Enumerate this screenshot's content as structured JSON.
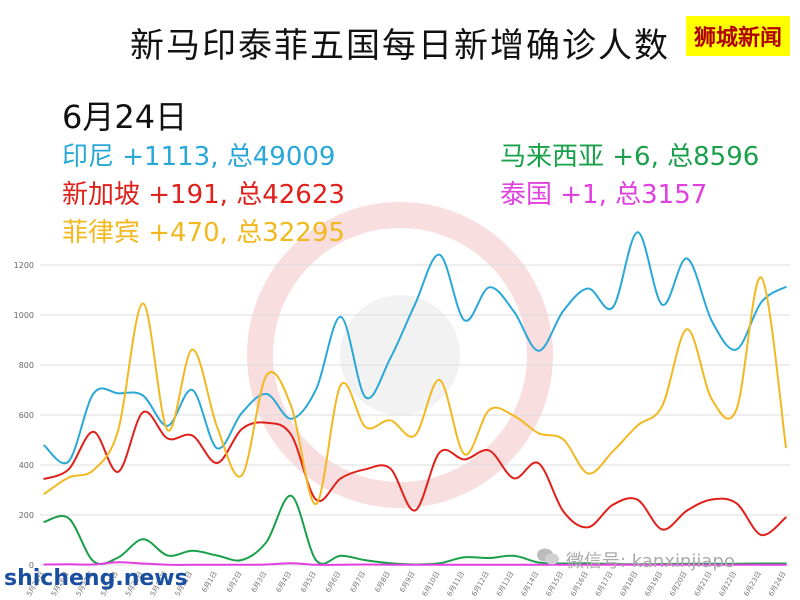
{
  "header": {
    "title": "新马印泰菲五国每日新增确诊人数",
    "badge": "狮城新闻",
    "date": "6月24日"
  },
  "stats": [
    {
      "key": "indonesia",
      "text": "印尼 +1113, 总49009",
      "color": "#29a8d8"
    },
    {
      "key": "malaysia",
      "text": "马来西亚 +6, 总8596",
      "color": "#1aa04a"
    },
    {
      "key": "singapore",
      "text": "新加坡 +191, 总42623",
      "color": "#e0201a"
    },
    {
      "key": "thailand",
      "text": "泰国 +1, 总3157",
      "color": "#e23fe0"
    },
    {
      "key": "philippines",
      "text": "菲律宾 +470, 总32295",
      "color": "#f2b820"
    }
  ],
  "watermarks": {
    "wechat": "微信号: kanxinjiapo",
    "site": "shicheng.news",
    "wechat_icon": "chat-bubble-icon"
  },
  "chart_data": {
    "type": "line",
    "title": "新马印泰菲五国每日新增确诊人数",
    "xlabel": "",
    "ylabel": "",
    "ylim": [
      0,
      1300
    ],
    "yticks": [
      0,
      200,
      400,
      600,
      800,
      1000,
      1200
    ],
    "grid": true,
    "legend": "none",
    "categories": [
      "5月25日",
      "5月26日",
      "5月27日",
      "5月28日",
      "5月29日",
      "5月30日",
      "5月31日",
      "6月1日",
      "6月2日",
      "6月3日",
      "6月4日",
      "6月5日",
      "6月6日",
      "6月7日",
      "6月8日",
      "6月9日",
      "6月10日",
      "6月11日",
      "6月12日",
      "6月13日",
      "6月14日",
      "6月15日",
      "6月16日",
      "6月17日",
      "6月18日",
      "6月19日",
      "6月20日",
      "6月21日",
      "6月22日",
      "6月23日",
      "6月24日"
    ],
    "x_tick_labels": [
      "5月25日",
      "5月26日",
      "5月27日",
      "5月28日",
      "5月29日",
      "5月30日",
      "5月31日",
      "6月1日",
      "6月2日",
      "6月3日",
      "6月4日",
      "6月5日",
      "6月6日",
      "6月7日",
      "6月8日",
      "6月9日",
      "6月10日",
      "6月11日",
      "6月12日",
      "6月13日",
      "6月14日",
      "6月15日",
      "6月16日",
      "6月17日",
      "6月18日",
      "6月19日",
      "6月20日",
      "6月21日",
      "6月22日",
      "6月23日",
      "6月24日"
    ],
    "series": [
      {
        "key": "indonesia",
        "color": "#29a8d8",
        "values": [
          479,
          415,
          686,
          687,
          678,
          557,
          700,
          467,
          609,
          684,
          585,
          703,
          993,
          671,
          827,
          1043,
          1241,
          979,
          1111,
          1014,
          857,
          1017,
          1106,
          1031,
          1331,
          1041,
          1226,
          976,
          862,
          1051,
          1113
        ]
      },
      {
        "key": "singapore",
        "color": "#e0201a",
        "values": [
          344,
          383,
          533,
          373,
          611,
          506,
          518,
          408,
          544,
          569,
          520,
          261,
          347,
          383,
          386,
          218,
          451,
          422,
          458,
          347,
          407,
          214,
          151,
          241,
          261,
          142,
          218,
          262,
          247,
          120,
          191
        ]
      },
      {
        "key": "philippines",
        "color": "#f2b820",
        "values": [
          284,
          350,
          380,
          539,
          1046,
          539,
          862,
          552,
          359,
          759,
          634,
          244,
          720,
          552,
          579,
          518,
          740,
          443,
          620,
          597,
          527,
          502,
          366,
          455,
          558,
          637,
          943,
          663,
          623,
          1150,
          470
        ]
      },
      {
        "key": "malaysia",
        "color": "#1aa04a",
        "values": [
          172,
          187,
          15,
          30,
          103,
          38,
          57,
          38,
          20,
          93,
          277,
          19,
          37,
          19,
          7,
          2,
          7,
          31,
          28,
          37,
          10,
          6,
          7,
          4,
          3,
          4,
          5,
          5,
          5,
          6,
          6
        ]
      },
      {
        "key": "thailand",
        "color": "#e23fe0",
        "values": [
          2,
          3,
          2,
          11,
          6,
          1,
          1,
          1,
          1,
          2,
          7,
          1,
          1,
          2,
          1,
          1,
          1,
          1,
          1,
          1,
          1,
          1,
          1,
          1,
          1,
          1,
          1,
          1,
          1,
          1,
          1
        ]
      }
    ]
  }
}
